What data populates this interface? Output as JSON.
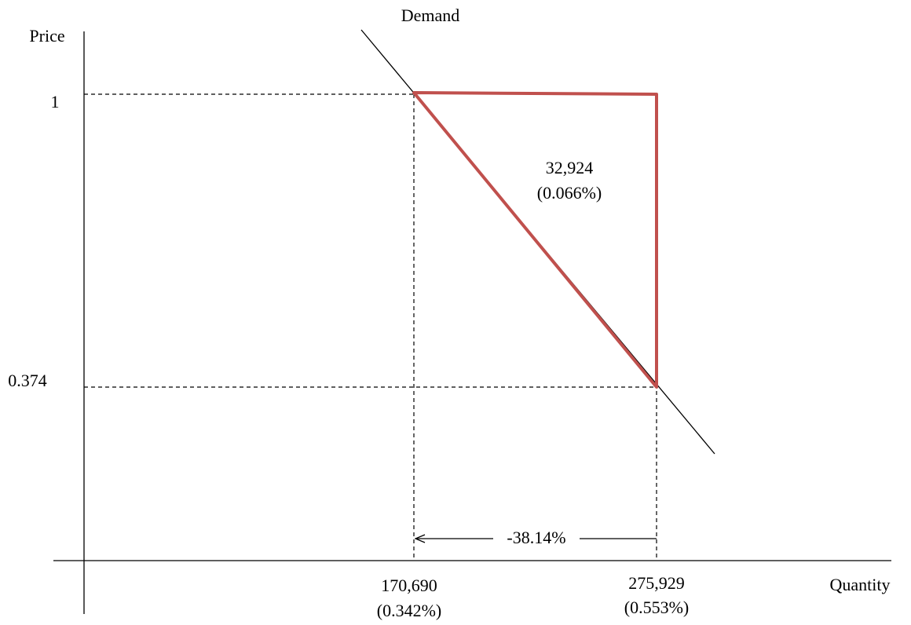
{
  "axes": {
    "y_label": "Price",
    "x_label": "Quantity"
  },
  "curve": {
    "label": "Demand"
  },
  "price_levels": [
    "1",
    "0.374"
  ],
  "quantities": [
    {
      "value": "170,690",
      "share": "(0.342%)"
    },
    {
      "value": "275,929",
      "share": "(0.553%)"
    }
  ],
  "triangle": {
    "value": "32,924",
    "share": "(0.066%)"
  },
  "change": {
    "label": "-38.14%"
  }
}
